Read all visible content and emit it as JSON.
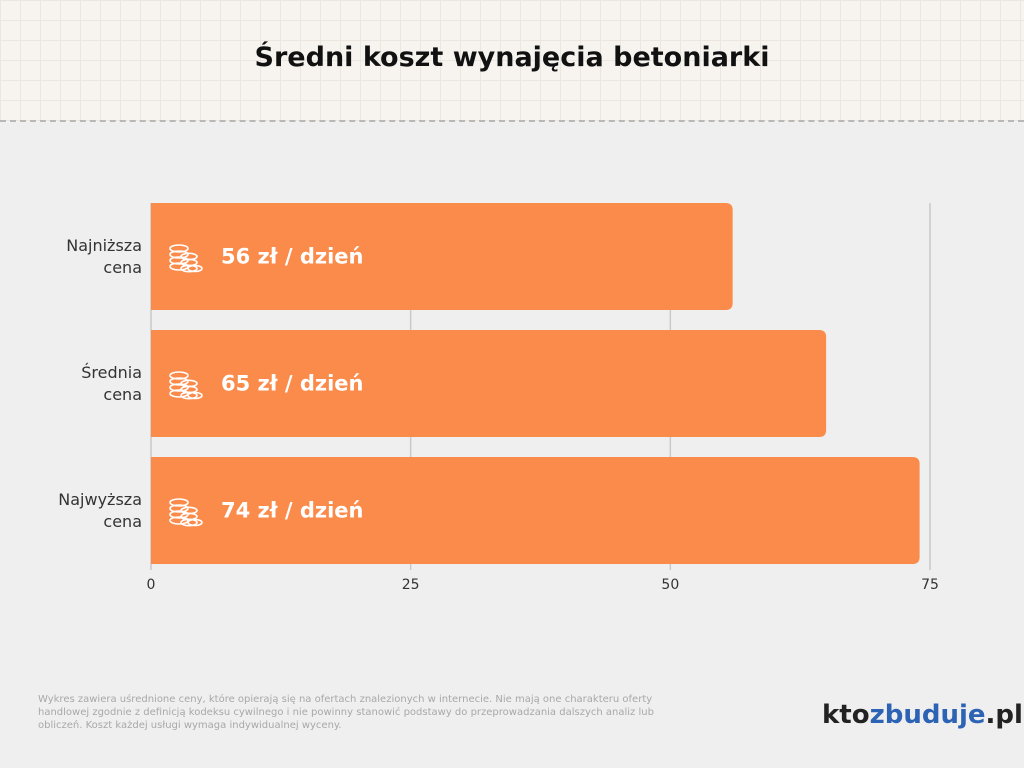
{
  "chart_data": {
    "type": "bar",
    "orientation": "horizontal",
    "title": "Średni koszt wynajęcia betoniarki",
    "categories": [
      "Najniższa cena",
      "Średnia cena",
      "Najwyższa cena"
    ],
    "values": [
      56,
      65,
      74
    ],
    "value_labels": [
      "56 zł / dzień",
      "65 zł / dzień",
      "74 zł / dzień"
    ],
    "color": "#fb8b4b",
    "xlim": [
      0,
      75
    ],
    "xticks": [
      0,
      25,
      50,
      75
    ],
    "grid": true
  },
  "footnote": "Wykres zawiera uśrednione ceny, które opierają się na ofertach znalezionych w internecie. Nie mają one charakteru oferty handlowej zgodnie z definicją kodeksu cywilnego i nie powinny stanowić podstawy do przeprowadzania dalszych analiz lub obliczeń. Koszt każdej usługi wymaga indywidualnej wyceny.",
  "logo": [
    "kto",
    "zbuduje",
    ".pl"
  ]
}
